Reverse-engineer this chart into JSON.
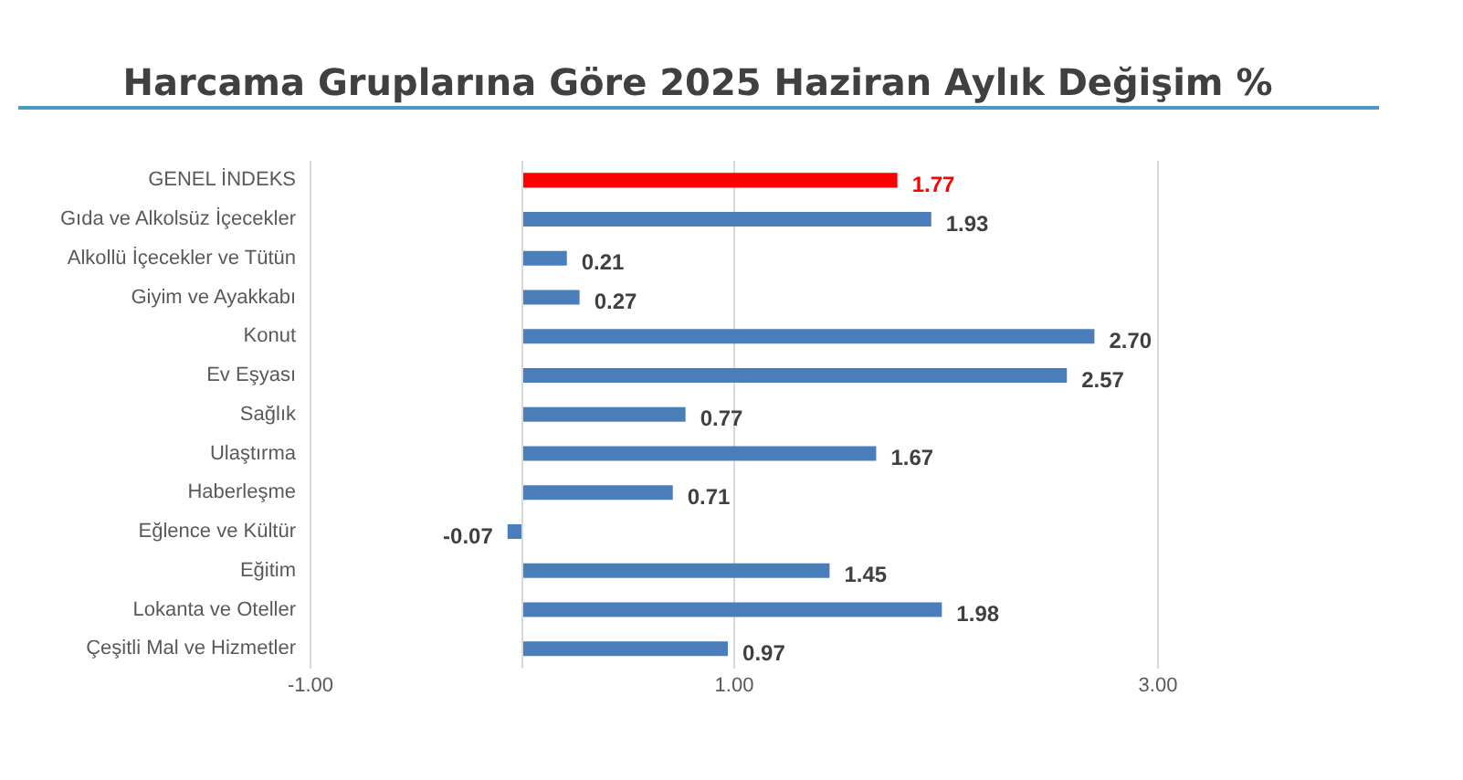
{
  "chart_data": {
    "type": "bar",
    "orientation": "horizontal",
    "title": "Harcama Gruplarına Göre 2025 Haziran Aylık Değişim %",
    "categories": [
      "GENEL İNDEKS",
      "Gıda ve Alkolsüz İçecekler",
      "Alkollü İçecekler ve Tütün",
      "Giyim ve Ayakkabı",
      "Konut",
      "Ev Eşyası",
      "Sağlık",
      "Ulaştırma",
      "Haberleşme",
      "Eğlence ve Kültür",
      "Eğitim",
      "Lokanta ve Oteller",
      "Çeşitli Mal ve Hizmetler"
    ],
    "values": [
      1.77,
      1.93,
      0.21,
      0.27,
      2.7,
      2.57,
      0.77,
      1.67,
      0.71,
      -0.07,
      1.45,
      1.98,
      0.97
    ],
    "value_labels": [
      "1.77",
      "1.93",
      "0.21",
      "0.27",
      "2.70",
      "2.57",
      "0.77",
      "1.67",
      "0.71",
      "-0.07",
      "1.45",
      "1.98",
      "0.97"
    ],
    "colors": [
      "#ff0000",
      "#4a7ebb",
      "#4a7ebb",
      "#4a7ebb",
      "#4a7ebb",
      "#4a7ebb",
      "#4a7ebb",
      "#4a7ebb",
      "#4a7ebb",
      "#4a7ebb",
      "#4a7ebb",
      "#4a7ebb",
      "#4a7ebb"
    ],
    "xlim": [
      -1,
      3
    ],
    "xticks": [
      {
        "value": -1,
        "label": "-1.00"
      },
      {
        "value": 1,
        "label": "1.00"
      },
      {
        "value": 3,
        "label": "3.00"
      }
    ],
    "grid": "x",
    "legend": false
  }
}
